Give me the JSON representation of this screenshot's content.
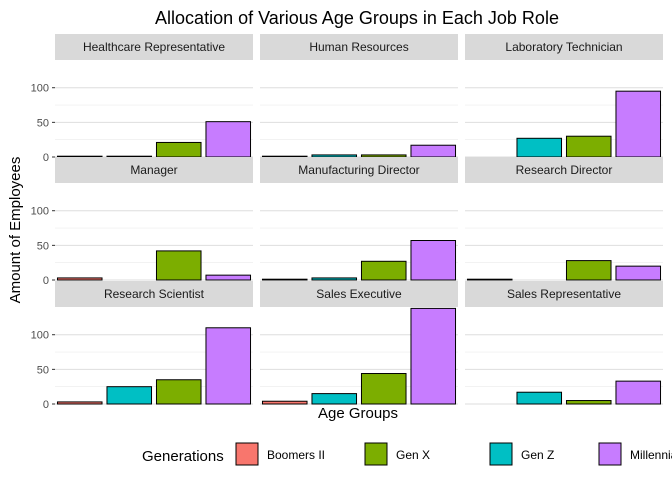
{
  "chart_data": {
    "type": "bar",
    "title": "Allocation of Various Age Groups in Each Job Role",
    "xlabel": "Age Groups",
    "ylabel": "Amount of Employees",
    "ylim": [
      0,
      140
    ],
    "yticks": [
      0,
      50,
      100
    ],
    "grid": true,
    "legend": {
      "title": "Generations",
      "position": "bottom",
      "entries": [
        {
          "name": "Boomers II",
          "color": "#F8766D"
        },
        {
          "name": "Gen X",
          "color": "#7CAE00"
        },
        {
          "name": "Gen Z",
          "color": "#00BFC4"
        },
        {
          "name": "Millennials",
          "color": "#C77CFF"
        }
      ]
    },
    "bar_order": [
      "Boomers II",
      "Gen Z",
      "Gen X",
      "Millennials"
    ],
    "colors": {
      "Boomers II": "#F8766D",
      "Gen X": "#7CAE00",
      "Gen Z": "#00BFC4",
      "Millennials": "#C77CFF"
    },
    "panels": [
      {
        "name": "Healthcare Representative",
        "values": {
          "Boomers II": 1,
          "Gen Z": 1,
          "Gen X": 21,
          "Millennials": 51
        }
      },
      {
        "name": "Human Resources",
        "values": {
          "Boomers II": 0,
          "Gen Z": 3,
          "Gen X": 3,
          "Millennials": 17
        }
      },
      {
        "name": "Laboratory Technician",
        "values": {
          "Boomers II": null,
          "Gen Z": 27,
          "Gen X": 30,
          "Millennials": 95
        }
      },
      {
        "name": "Manager",
        "values": {
          "Boomers II": 3,
          "Gen Z": null,
          "Gen X": 42,
          "Millennials": 7
        }
      },
      {
        "name": "Manufacturing Director",
        "values": {
          "Boomers II": 1,
          "Gen Z": 3,
          "Gen X": 27,
          "Millennials": 57
        }
      },
      {
        "name": "Research Director",
        "values": {
          "Boomers II": 1,
          "Gen Z": null,
          "Gen X": 28,
          "Millennials": 20
        }
      },
      {
        "name": "Research Scientist",
        "values": {
          "Boomers II": 3,
          "Gen Z": 25,
          "Gen X": 35,
          "Millennials": 110
        }
      },
      {
        "name": "Sales Executive",
        "values": {
          "Boomers II": 4,
          "Gen Z": 15,
          "Gen X": 44,
          "Millennials": 138
        }
      },
      {
        "name": "Sales Representative",
        "values": {
          "Boomers II": null,
          "Gen Z": 17,
          "Gen X": 5,
          "Millennials": 33
        }
      }
    ]
  }
}
